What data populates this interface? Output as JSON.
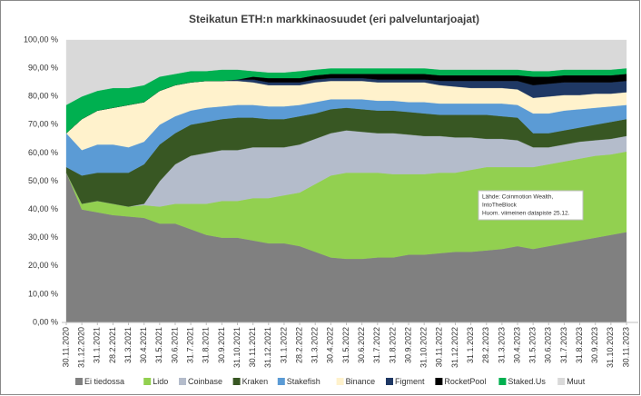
{
  "chart_data": {
    "type": "stacked_area",
    "title": "Steikatun ETH:n markkinaosuudet (eri palveluntarjoajat)",
    "annotation": [
      "Lähde: Coinmotion Wealth,",
      "IntoTheBlock",
      "Huom. viimeinen datapiste 25.12."
    ],
    "categories": [
      "30.11.2020",
      "31.12.2020",
      "31.1.2021",
      "28.2.2021",
      "31.3.2021",
      "30.4.2021",
      "31.5.2021",
      "30.6.2021",
      "31.7.2021",
      "31.8.2021",
      "30.9.2021",
      "31.10.2021",
      "30.11.2021",
      "31.12.2021",
      "31.1.2022",
      "28.2.2022",
      "31.3.2022",
      "30.4.2022",
      "31.5.2022",
      "30.6.2022",
      "31.7.2022",
      "31.8.2022",
      "30.9.2022",
      "31.10.2022",
      "30.11.2022",
      "31.12.2022",
      "31.1.2023",
      "28.2.2023",
      "31.3.2023",
      "30.4.2023",
      "31.5.2023",
      "30.6.2023",
      "31.7.2023",
      "31.8.2023",
      "30.9.2023",
      "31.10.2023",
      "30.11.2023"
    ],
    "series": [
      {
        "name": "Ei tiedossa",
        "color": "#808080",
        "values": [
          53,
          40,
          39,
          38,
          37.5,
          37,
          35,
          35,
          33,
          31,
          30,
          30,
          29,
          28,
          28,
          27,
          25,
          23,
          22.5,
          22.5,
          23,
          23,
          24,
          24,
          24.5,
          25,
          25,
          25.5,
          26,
          27,
          26,
          27,
          28,
          29,
          30,
          31,
          32
        ]
      },
      {
        "name": "Lido",
        "color": "#92d050",
        "values": [
          0,
          2,
          4,
          4,
          3.5,
          4.5,
          6,
          7,
          9,
          11,
          13,
          13,
          15,
          16,
          17,
          19,
          24,
          29,
          30.5,
          30.5,
          30,
          29.5,
          28.5,
          28.5,
          28.5,
          28,
          29,
          29.5,
          29,
          28,
          29,
          29,
          29,
          29,
          29,
          28.5,
          28.5
        ]
      },
      {
        "name": "Coinbase",
        "color": "#b4bccb",
        "values": [
          0,
          0,
          0,
          0,
          0,
          0.5,
          9,
          14,
          17,
          18,
          18,
          18,
          18,
          18,
          17,
          17,
          16,
          15,
          15,
          14.5,
          14,
          14.5,
          14,
          13.5,
          13,
          12.5,
          11.5,
          10,
          10,
          9.5,
          7,
          6,
          6,
          6,
          5.5,
          5.5,
          5.5
        ]
      },
      {
        "name": "Kraken",
        "color": "#385723",
        "values": [
          2,
          10,
          10,
          11,
          12,
          14,
          13,
          11,
          11,
          11,
          11,
          11.5,
          10.5,
          10,
          10,
          10,
          9,
          8.5,
          8,
          8,
          8,
          8,
          8,
          8,
          7.5,
          8,
          8,
          8.5,
          8,
          8,
          5,
          5,
          5,
          5,
          5.5,
          6,
          6
        ]
      },
      {
        "name": "Stakefish",
        "color": "#5b9bd5",
        "values": [
          12,
          9,
          10,
          10,
          9,
          8,
          7,
          6,
          5,
          5,
          4.5,
          4.5,
          4.5,
          4.5,
          4.5,
          4,
          4,
          3.5,
          3,
          3.5,
          3.5,
          3.5,
          3.5,
          4,
          4,
          4,
          4,
          4,
          4.5,
          4.5,
          7,
          7,
          7,
          6.5,
          6,
          5.5,
          5
        ]
      },
      {
        "name": "Binance",
        "color": "#fff2cc",
        "values": [
          0,
          11,
          12,
          13,
          15,
          14,
          12,
          11,
          10,
          9.5,
          9,
          8.5,
          8,
          7.5,
          7.5,
          7,
          7,
          6.5,
          6.5,
          6.5,
          6.5,
          6.5,
          7,
          7,
          6.5,
          6,
          5.5,
          5.5,
          5.5,
          5.5,
          5.5,
          6,
          5.5,
          5,
          5,
          4.5,
          4.5
        ]
      },
      {
        "name": "Figment",
        "color": "#1f3864",
        "values": [
          0,
          0,
          0,
          0,
          0,
          0,
          0,
          0,
          0,
          0,
          0,
          0.5,
          1,
          1,
          1,
          1,
          1,
          1,
          1,
          1,
          1,
          1,
          1,
          1,
          1.5,
          2,
          2.5,
          2.5,
          2.5,
          3,
          4.5,
          4.5,
          4.5,
          4.5,
          4,
          4,
          4
        ]
      },
      {
        "name": "RocketPool",
        "color": "#000000",
        "values": [
          0,
          0,
          0,
          0,
          0,
          0,
          0,
          0,
          0,
          0,
          0,
          0,
          1,
          1.5,
          1.5,
          1.5,
          1.5,
          1.5,
          1.5,
          1.5,
          2,
          2,
          2,
          2,
          2,
          2,
          2,
          2,
          2,
          2,
          3,
          2.5,
          2.5,
          2.5,
          2.5,
          2.5,
          2.5
        ]
      },
      {
        "name": "Staked.Us",
        "color": "#00b050",
        "values": [
          10,
          8,
          7,
          7,
          6,
          6,
          5,
          4,
          4,
          3.5,
          4,
          3.5,
          2,
          2,
          2,
          2.5,
          2,
          2,
          2,
          2,
          2,
          2,
          2,
          2,
          2,
          2,
          2,
          2,
          2,
          2,
          2,
          2,
          2,
          2,
          2,
          2,
          2
        ]
      },
      {
        "name": "Muut",
        "color": "#d9d9d9",
        "values": [
          23,
          20,
          18,
          17,
          17,
          16,
          13,
          12,
          11,
          11,
          10.5,
          10.5,
          11,
          11.5,
          11.5,
          11,
          10.5,
          10,
          10,
          10,
          10,
          10,
          10,
          10,
          10.5,
          10.5,
          10.5,
          10.5,
          10.5,
          10.5,
          11,
          11,
          10.5,
          10.5,
          10.5,
          10.5,
          10
        ]
      }
    ],
    "ylim": [
      0,
      100
    ],
    "yticks": [
      {
        "value": 0,
        "label": "0,00 %"
      },
      {
        "value": 10,
        "label": "10,00 %"
      },
      {
        "value": 20,
        "label": "20,00 %"
      },
      {
        "value": 30,
        "label": "30,00 %"
      },
      {
        "value": 40,
        "label": "40,00 %"
      },
      {
        "value": 50,
        "label": "50,00 %"
      },
      {
        "value": 60,
        "label": "60,00 %"
      },
      {
        "value": 70,
        "label": "70,00 %"
      },
      {
        "value": 80,
        "label": "80,00 %"
      },
      {
        "value": 90,
        "label": "90,00 %"
      },
      {
        "value": 100,
        "label": "100,00 %"
      }
    ],
    "grid": false,
    "legend": "bottom"
  }
}
